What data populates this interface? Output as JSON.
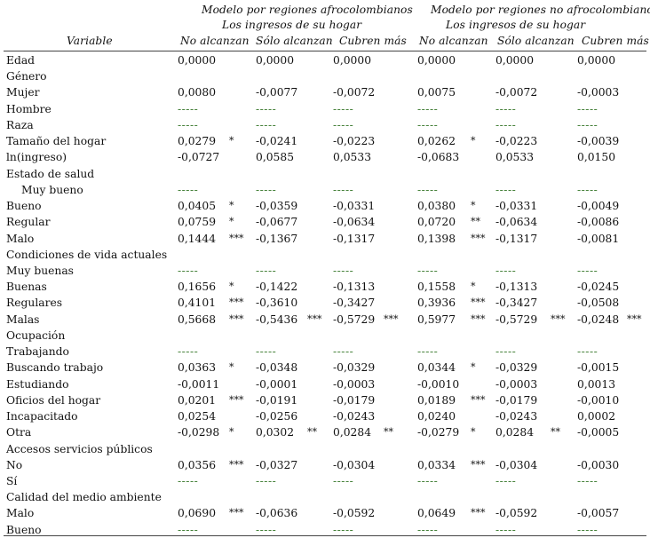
{
  "header": {
    "group1_title": "Modelo por regiones afrocolombianos",
    "group1_sub": "Los ingresos de su hogar",
    "group2_title": "Modelo por regiones no afrocolombianos",
    "group2_sub": "Los ingresos de su hogar",
    "col_variable": "Variable",
    "col1": "No alcanzan",
    "col2": "Sólo alcanzan",
    "col3": "Cubren más",
    "col4": "No alcanzan",
    "col5": "Sólo alcanzan",
    "col6": "Cubren más"
  },
  "rows": [
    {
      "label": "Edad",
      "v": [
        "0,0000",
        "0,0000",
        "0,0000",
        "0,0000",
        "0,0000",
        "0,0000"
      ],
      "s": [
        "",
        "",
        "",
        "",
        "",
        ""
      ]
    },
    {
      "label": "Género",
      "v": [
        "",
        "",
        "",
        "",
        "",
        ""
      ],
      "s": [
        "",
        "",
        "",
        "",
        "",
        ""
      ]
    },
    {
      "label": "Mujer",
      "v": [
        "0,0080",
        "-0,0077",
        "-0,0072",
        "0,0075",
        "-0,0072",
        "-0,0003"
      ],
      "s": [
        "",
        "",
        "",
        "",
        "",
        ""
      ]
    },
    {
      "label": "Hombre",
      "v": [
        "-----",
        "-----",
        "-----",
        "-----",
        "-----",
        "-----"
      ],
      "s": [
        "",
        "",
        "",
        "",
        "",
        ""
      ]
    },
    {
      "label": "Raza",
      "v": [
        "-----",
        "-----",
        "-----",
        "-----",
        "-----",
        "-----"
      ],
      "s": [
        "",
        "",
        "",
        "",
        "",
        ""
      ]
    },
    {
      "label": "Tamaño del hogar",
      "v": [
        "0,0279",
        "-0,0241",
        "-0,0223",
        "0,0262",
        "-0,0223",
        "-0,0039"
      ],
      "s": [
        "*",
        "",
        "",
        "*",
        "",
        ""
      ]
    },
    {
      "label": "ln(ingreso)",
      "v": [
        "-0,0727",
        "0,0585",
        "0,0533",
        "-0,0683",
        "0,0533",
        "0,0150"
      ],
      "s": [
        "",
        "",
        "",
        "",
        "",
        ""
      ]
    },
    {
      "label": "Estado de salud",
      "v": [
        "",
        "",
        "",
        "",
        "",
        ""
      ],
      "s": [
        "",
        "",
        "",
        "",
        "",
        ""
      ]
    },
    {
      "label": "Muy bueno",
      "v": [
        "-----",
        "-----",
        "-----",
        "-----",
        "-----",
        "-----"
      ],
      "s": [
        "",
        "",
        "",
        "",
        "",
        ""
      ]
    },
    {
      "label": "Bueno",
      "v": [
        "0,0405",
        "-0,0359",
        "-0,0331",
        "0,0380",
        "-0,0331",
        "-0,0049"
      ],
      "s": [
        "*",
        "",
        "",
        "*",
        "",
        ""
      ]
    },
    {
      "label": "Regular",
      "v": [
        "0,0759",
        "-0,0677",
        "-0,0634",
        "0,0720",
        "-0,0634",
        "-0,0086"
      ],
      "s": [
        "*",
        "",
        "",
        "**",
        "",
        ""
      ]
    },
    {
      "label": "Malo",
      "v": [
        "0,1444",
        "-0,1367",
        "-0,1317",
        "0,1398",
        "-0,1317",
        "-0,0081"
      ],
      "s": [
        "***",
        "",
        "",
        "***",
        "",
        ""
      ]
    },
    {
      "label": "Condiciones de vida actuales",
      "v": [
        "",
        "",
        "",
        "",
        "",
        ""
      ],
      "s": [
        "",
        "",
        "",
        "",
        "",
        ""
      ]
    },
    {
      "label": "Muy buenas",
      "v": [
        "-----",
        "-----",
        "-----",
        "-----",
        "-----",
        "-----"
      ],
      "s": [
        "",
        "",
        "",
        "",
        "",
        ""
      ]
    },
    {
      "label": "Buenas",
      "v": [
        "0,1656",
        "-0,1422",
        "-0,1313",
        "0,1558",
        "-0,1313",
        "-0,0245"
      ],
      "s": [
        "*",
        "",
        "",
        "*",
        "",
        ""
      ]
    },
    {
      "label": "Regulares",
      "v": [
        "0,4101",
        "-0,3610",
        "-0,3427",
        "0,3936",
        "-0,3427",
        "-0,0508"
      ],
      "s": [
        "***",
        "",
        "",
        "***",
        "",
        ""
      ]
    },
    {
      "label": "Malas",
      "v": [
        "0,5668",
        "-0,5436",
        "-0,5729",
        "0,5977",
        "-0,5729",
        "-0,0248"
      ],
      "s": [
        "***",
        "***",
        "***",
        "***",
        "***",
        "***"
      ]
    },
    {
      "label": "Ocupación",
      "v": [
        "",
        "",
        "",
        "",
        "",
        ""
      ],
      "s": [
        "",
        "",
        "",
        "",
        "",
        ""
      ]
    },
    {
      "label": "Trabajando",
      "v": [
        "-----",
        "-----",
        "-----",
        "-----",
        "-----",
        "-----"
      ],
      "s": [
        "",
        "",
        "",
        "",
        "",
        ""
      ]
    },
    {
      "label": "Buscando trabajo",
      "v": [
        "0,0363",
        "-0,0348",
        "-0,0329",
        "0,0344",
        "-0,0329",
        "-0,0015"
      ],
      "s": [
        "*",
        "",
        "",
        "*",
        "",
        ""
      ]
    },
    {
      "label": "Estudiando",
      "v": [
        "-0,0011",
        "-0,0001",
        "-0,0003",
        "-0,0010",
        "-0,0003",
        "0,0013"
      ],
      "s": [
        "",
        "",
        "",
        "",
        "",
        ""
      ]
    },
    {
      "label": "Oficios del hogar",
      "v": [
        "0,0201",
        "-0,0191",
        "-0,0179",
        "0,0189",
        "-0,0179",
        "-0,0010"
      ],
      "s": [
        "***",
        "",
        "",
        "***",
        "",
        ""
      ]
    },
    {
      "label": "Incapacitado",
      "v": [
        "0,0254",
        "-0,0256",
        "-0,0243",
        "0,0240",
        "-0,0243",
        "0,0002"
      ],
      "s": [
        "",
        "",
        "",
        "",
        "",
        ""
      ]
    },
    {
      "label": "Otra",
      "v": [
        "-0,0298",
        "0,0302",
        "0,0284",
        "-0,0279",
        "0,0284",
        "-0,0005"
      ],
      "s": [
        "*",
        "**",
        "**",
        "*",
        "**",
        ""
      ]
    },
    {
      "label": "Accesos servicios públicos",
      "v": [
        "",
        "",
        "",
        "",
        "",
        ""
      ],
      "s": [
        "",
        "",
        "",
        "",
        "",
        ""
      ]
    },
    {
      "label": "No",
      "v": [
        "0,0356",
        "-0,0327",
        "-0,0304",
        "0,0334",
        "-0,0304",
        "-0,0030"
      ],
      "s": [
        "***",
        "",
        "",
        "***",
        "",
        ""
      ]
    },
    {
      "label": "Sí",
      "v": [
        "-----",
        "-----",
        "-----",
        "-----",
        "-----",
        "-----"
      ],
      "s": [
        "",
        "",
        "",
        "",
        "",
        ""
      ]
    },
    {
      "label": "Calidad del medio ambiente",
      "v": [
        "",
        "",
        "",
        "",
        "",
        ""
      ],
      "s": [
        "",
        "",
        "",
        "",
        "",
        ""
      ]
    },
    {
      "label": "Malo",
      "v": [
        "0,0690",
        "-0,0636",
        "-0,0592",
        "0,0649",
        "-0,0592",
        "-0,0057"
      ],
      "s": [
        "***",
        "",
        "",
        "***",
        "",
        ""
      ]
    },
    {
      "label": "Bueno",
      "v": [
        "-----",
        "-----",
        "-----",
        "-----",
        "-----",
        "-----"
      ],
      "s": [
        "",
        "",
        "",
        "",
        "",
        ""
      ]
    }
  ]
}
